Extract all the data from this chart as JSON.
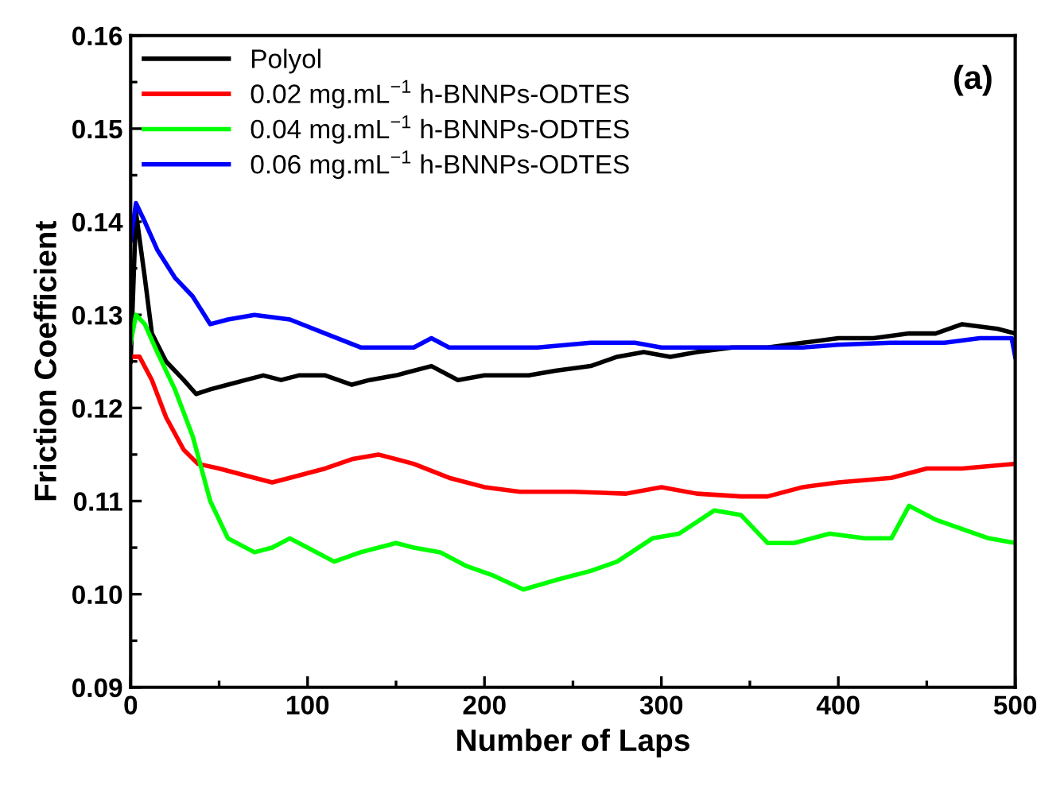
{
  "chart_data": {
    "type": "line",
    "xlabel": "Number of Laps",
    "ylabel": "Friction Coefficient",
    "annotations": [
      "(a)"
    ],
    "xlim": [
      0,
      500
    ],
    "xticks": [
      0,
      100,
      200,
      300,
      400,
      500
    ],
    "ylim": [
      0.09,
      0.16
    ],
    "yticks": [
      0.09,
      {
        "value": 0.1,
        "label": "0.10"
      },
      0.11,
      0.12,
      0.13,
      0.14,
      0.15,
      0.16
    ],
    "legend": "top left",
    "grid": false,
    "series": [
      {
        "name": "Polyol",
        "color": "#000000",
        "x": [
          0,
          3,
          8,
          12,
          20,
          30,
          37,
          45,
          55,
          65,
          75,
          85,
          95,
          110,
          125,
          135,
          150,
          170,
          185,
          200,
          225,
          240,
          260,
          275,
          290,
          305,
          320,
          340,
          360,
          380,
          400,
          420,
          440,
          455,
          470,
          490,
          500
        ],
        "values": [
          0.125,
          0.141,
          0.134,
          0.128,
          0.125,
          0.123,
          0.1215,
          0.122,
          0.1225,
          0.123,
          0.1235,
          0.123,
          0.1235,
          0.1235,
          0.1225,
          0.123,
          0.1235,
          0.1245,
          0.123,
          0.1235,
          0.1235,
          0.124,
          0.1245,
          0.1255,
          0.126,
          0.1255,
          0.126,
          0.1265,
          0.1265,
          0.127,
          0.1275,
          0.1275,
          0.128,
          0.128,
          0.129,
          0.1285,
          0.128
        ]
      },
      {
        "name": "0.02 mg.mL$^{−1}$ h-BNNPs-ODTES",
        "color": "#ff0000",
        "x": [
          0,
          5,
          12,
          20,
          30,
          38,
          50,
          70,
          80,
          90,
          110,
          125,
          140,
          160,
          180,
          200,
          220,
          250,
          280,
          300,
          320,
          345,
          360,
          380,
          400,
          430,
          450,
          470,
          500
        ],
        "values": [
          0.1255,
          0.1255,
          0.123,
          0.119,
          0.1155,
          0.114,
          0.1135,
          0.1125,
          0.112,
          0.1125,
          0.1135,
          0.1145,
          0.115,
          0.114,
          0.1125,
          0.1115,
          0.111,
          0.111,
          0.1108,
          0.1115,
          0.1108,
          0.1105,
          0.1105,
          0.1115,
          0.112,
          0.1125,
          0.1135,
          0.1135,
          0.114
        ]
      },
      {
        "name": "0.04 mg.mL$^{−1}$ h-BNNPs-ODTES",
        "color": "#00ff00",
        "x": [
          0,
          3,
          8,
          15,
          25,
          35,
          45,
          55,
          70,
          80,
          90,
          100,
          115,
          130,
          150,
          160,
          175,
          190,
          205,
          222,
          240,
          260,
          275,
          295,
          310,
          330,
          345,
          360,
          375,
          395,
          415,
          430,
          440,
          455,
          470,
          485,
          500
        ],
        "values": [
          0.127,
          0.13,
          0.129,
          0.126,
          0.122,
          0.117,
          0.11,
          0.106,
          0.1045,
          0.105,
          0.106,
          0.105,
          0.1035,
          0.1045,
          0.1055,
          0.105,
          0.1045,
          0.103,
          0.102,
          0.1005,
          0.1015,
          0.1025,
          0.1035,
          0.106,
          0.1065,
          0.109,
          0.1085,
          0.1055,
          0.1055,
          0.1065,
          0.106,
          0.106,
          0.1095,
          0.108,
          0.107,
          0.106,
          0.1055
        ]
      },
      {
        "name": "0.06 mg.mL$^{−1}$ h-BNNPs-ODTES",
        "color": "#0000ff",
        "x": [
          0,
          3,
          8,
          15,
          25,
          35,
          45,
          55,
          70,
          90,
          110,
          130,
          150,
          160,
          170,
          180,
          200,
          230,
          260,
          285,
          300,
          320,
          350,
          380,
          400,
          430,
          460,
          480,
          498,
          500
        ],
        "values": [
          0.138,
          0.142,
          0.14,
          0.137,
          0.134,
          0.132,
          0.129,
          0.1295,
          0.13,
          0.1295,
          0.128,
          0.1265,
          0.1265,
          0.1265,
          0.1275,
          0.1265,
          0.1265,
          0.1265,
          0.127,
          0.127,
          0.1265,
          0.1265,
          0.1265,
          0.1265,
          0.1268,
          0.127,
          0.127,
          0.1275,
          0.1275,
          0.1255
        ]
      }
    ]
  }
}
